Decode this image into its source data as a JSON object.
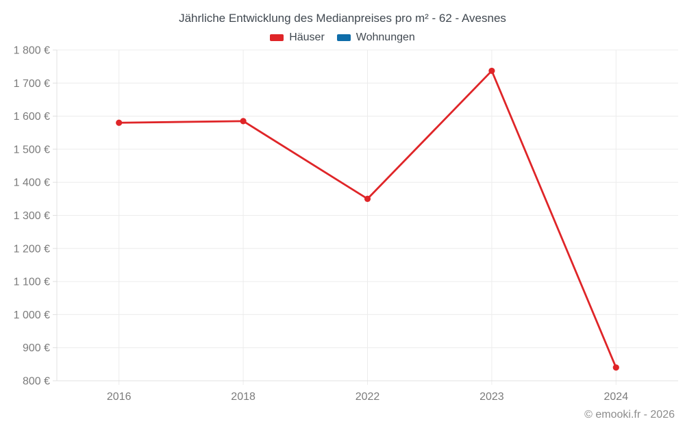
{
  "page": {
    "title": "Jährliche Entwicklung des Medianpreises pro m² - 62 - Avesnes",
    "footer": "© emooki.fr - 2026"
  },
  "legend": {
    "items": [
      {
        "label": "Häuser",
        "key": "haeuser",
        "color": "#df2528"
      },
      {
        "label": "Wohnungen",
        "key": "wohnungen",
        "color": "#0f6da9"
      }
    ]
  },
  "colors": {
    "grid": "#ececec",
    "axis": "#e0e0e0",
    "tick_text": "#7b7b7b",
    "title_text": "#404850",
    "footer_text": "#8c8c8c",
    "background": "#ffffff"
  },
  "chart_data": {
    "type": "line",
    "title": "Jährliche Entwicklung des Medianpreises pro m² - 62 - Avesnes",
    "categories": [
      "2016",
      "2018",
      "2022",
      "2023",
      "2024"
    ],
    "series": [
      {
        "name": "Häuser",
        "key": "haeuser",
        "color": "#df2528",
        "values": [
          1580,
          1585,
          1350,
          1737,
          840
        ]
      },
      {
        "name": "Wohnungen",
        "key": "wohnungen",
        "color": "#0f6da9",
        "values": []
      }
    ],
    "ylabel": "",
    "xlabel": "",
    "ylim": [
      800,
      1800
    ],
    "y_ticks": [
      800,
      900,
      1000,
      1100,
      1200,
      1300,
      1400,
      1500,
      1600,
      1700,
      1800
    ],
    "y_tick_labels": [
      "800 €",
      "900 €",
      "1 000 €",
      "1 100 €",
      "1 200 €",
      "1 300 €",
      "1 400 €",
      "1 500 €",
      "1 600 €",
      "1 700 €",
      "1 800 €"
    ],
    "grid": true,
    "legend_position": "top"
  }
}
